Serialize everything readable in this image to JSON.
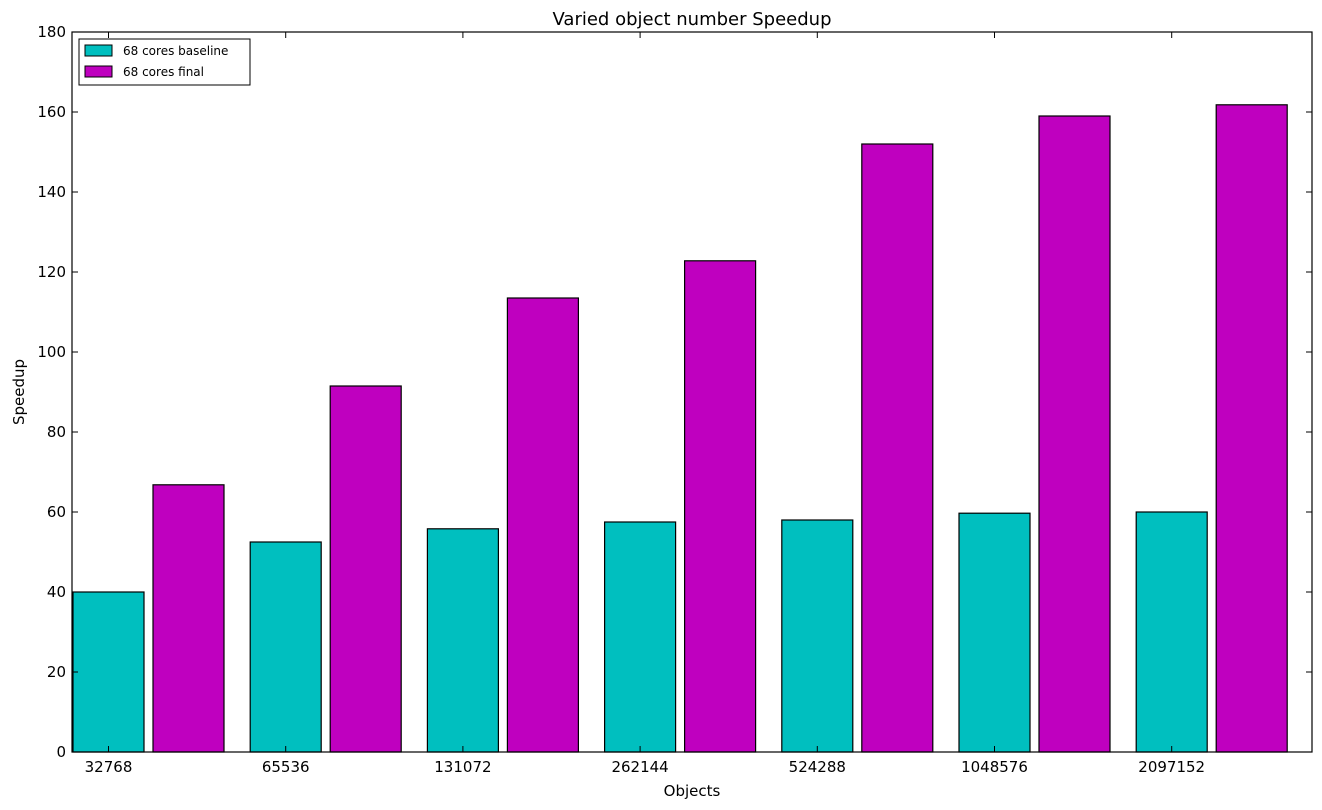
{
  "chart_data": {
    "type": "bar",
    "title": "Varied object number Speedup",
    "xlabel": "Objects",
    "ylabel": "Speedup",
    "categories": [
      "32768",
      "65536",
      "131072",
      "262144",
      "524288",
      "1048576",
      "2097152"
    ],
    "series": [
      {
        "name": "68 cores baseline",
        "color": "#00bfbf",
        "values": [
          40,
          52.5,
          55.8,
          57.5,
          58,
          59.7,
          60
        ]
      },
      {
        "name": "68 cores final",
        "color": "#bf00bf",
        "values": [
          66.8,
          91.5,
          113.5,
          122.8,
          152,
          159,
          161.8
        ]
      }
    ],
    "ylim": [
      0,
      180
    ],
    "yticks": [
      0,
      20,
      40,
      60,
      80,
      100,
      120,
      140,
      160,
      180
    ],
    "grid": false,
    "legend_position": "top-left"
  }
}
